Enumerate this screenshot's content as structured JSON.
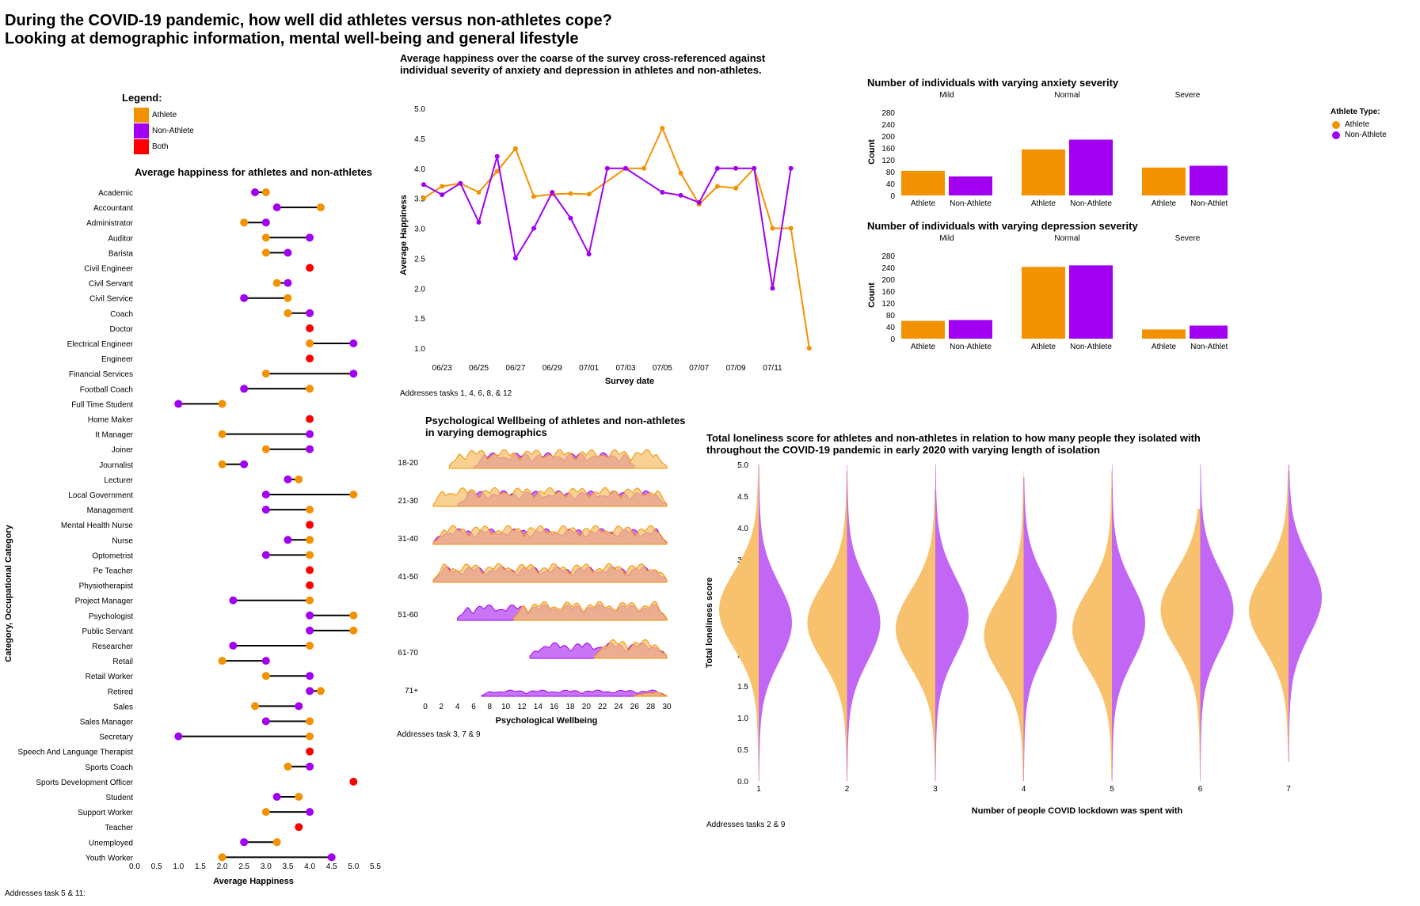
{
  "header": {
    "title_line1": "During the COVID-19 pandemic, how well did athletes versus non-athletes cope?",
    "title_line2": "Looking at demographic information, mental well-being and general lifestyle"
  },
  "colors": {
    "athlete": "#f39200",
    "non_athlete": "#a100f2",
    "both": "#ff0000",
    "athlete_fill": "#f7c16d",
    "non_athlete_fill": "#c266f5",
    "overlap_fill": "#e0827a"
  },
  "legend": {
    "title": "Legend:",
    "items": [
      {
        "label": "Athlete",
        "color": "#f39200"
      },
      {
        "label": "Non-Athlete",
        "color": "#a100f2"
      },
      {
        "label": "Both",
        "color": "#ff0000"
      }
    ]
  },
  "athlete_type_legend": {
    "title": "Athlete Type:",
    "items": [
      {
        "label": "Athlete",
        "color": "#f39200"
      },
      {
        "label": "Non-Athlete",
        "color": "#a100f2"
      }
    ]
  },
  "dumbbell": {
    "title": "Average happiness for athletes and non-athletes",
    "xlabel": "Average Happiness",
    "ylabel": "Category, Occupational Category",
    "note": "Addresses task 5 & 11:",
    "x_ticks": [
      "0.0",
      "0.5",
      "1.0",
      "1.5",
      "2.0",
      "2.5",
      "3.0",
      "3.5",
      "4.0",
      "4.5",
      "5.0",
      "5.5"
    ]
  },
  "line": {
    "title_line1": "Average happiness over the coarse of the survey cross-referenced against",
    "title_line2": "individual severity of anxiety and depression in athletes and non-athletes.",
    "xlabel": "Survey date",
    "ylabel": "Average Happiness",
    "note": "Addresses tasks 1, 4, 6, 8, & 12",
    "y_ticks": [
      "1.0",
      "1.5",
      "2.0",
      "2.5",
      "3.0",
      "3.5",
      "4.0",
      "4.5",
      "5.0"
    ],
    "x_ticks": [
      "06/23",
      "06/25",
      "06/27",
      "06/29",
      "07/01",
      "07/03",
      "07/05",
      "07/07",
      "07/09",
      "07/11"
    ]
  },
  "anxiety": {
    "title": "Number of individuals with varying anxiety severity",
    "facets": [
      "Mild",
      "Normal",
      "Severe"
    ],
    "ylabel": "Count",
    "y_ticks": [
      "0",
      "40",
      "80",
      "120",
      "160",
      "200",
      "240",
      "280"
    ],
    "bar_labels": [
      "Athlete",
      "Non-Athlete"
    ]
  },
  "depression": {
    "title": "Number of individuals with varying depression severity",
    "facets": [
      "Mild",
      "Normal",
      "Severe"
    ],
    "ylabel": "Count",
    "y_ticks": [
      "0",
      "40",
      "80",
      "120",
      "160",
      "200",
      "240",
      "280"
    ],
    "bar_labels": [
      "Athlete",
      "Non-Athlete"
    ]
  },
  "ridge": {
    "title_line1": "Psychological Wellbeing of athletes and non-athletes",
    "title_line2": "in varying demographics",
    "xlabel": "Psychological Wellbeing",
    "note": "Addresses task 3, 7 & 9",
    "groups": [
      "18-20",
      "21-30",
      "31-40",
      "41-50",
      "51-60",
      "61-70",
      "71+"
    ],
    "x_ticks": [
      "0",
      "2",
      "4",
      "6",
      "8",
      "10",
      "12",
      "14",
      "16",
      "18",
      "20",
      "22",
      "24",
      "26",
      "28",
      "30"
    ]
  },
  "violin": {
    "title_line1": "Total loneliness score for athletes and non-athletes in relation to how many people they isolated with",
    "title_line2": "throughout the COVID-19 pandemic in early 2020 with varying length of isolation",
    "xlabel": "Number of people COVID lockdown was spent with",
    "ylabel": "Total loneliness score",
    "note": "Addresses tasks 2 & 9",
    "y_ticks": [
      "0.0",
      "0.5",
      "1.0",
      "1.5",
      "2.0",
      "2.5",
      "3.0",
      "3.5",
      "4.0",
      "4.5",
      "5.0"
    ],
    "x_ticks": [
      "1",
      "2",
      "3",
      "4",
      "5",
      "6",
      "7"
    ]
  },
  "chart_data": [
    {
      "type": "dumbbell",
      "title": "Average happiness for athletes and non-athletes",
      "xlabel": "Average Happiness",
      "ylabel": "Category, Occupational Category",
      "xlim": [
        0,
        5.5
      ],
      "categories": [
        "Academic",
        "Accountant",
        "Administrator",
        "Auditor",
        "Barista",
        "Civil Engineer",
        "Civil Servant",
        "Civil Service",
        "Coach",
        "Doctor",
        "Electrical Engineer",
        "Engineer",
        "Financial Services",
        "Football Coach",
        "Full Time Student",
        "Home Maker",
        "It Manager",
        "Joiner",
        "Journalist",
        "Lecturer",
        "Local Government",
        "Management",
        "Mental Health Nurse",
        "Nurse",
        "Optometrist",
        "Pe Teacher",
        "Physiotherapist",
        "Project Manager",
        "Psychologist",
        "Public Servant",
        "Researcher",
        "Retail",
        "Retail Worker",
        "Retired",
        "Sales",
        "Sales Manager",
        "Secretary",
        "Speech And Language Therapist",
        "Sports Coach",
        "Sports Development Officer",
        "Student",
        "Support Worker",
        "Teacher",
        "Unemployed",
        "Youth Worker"
      ],
      "athlete": [
        3.0,
        4.25,
        2.5,
        3.0,
        3.0,
        null,
        3.25,
        3.5,
        3.5,
        null,
        4.0,
        null,
        3.0,
        4.0,
        2.0,
        null,
        2.0,
        3.0,
        2.0,
        3.75,
        5.0,
        4.0,
        null,
        4.0,
        4.0,
        null,
        null,
        4.0,
        5.0,
        5.0,
        4.0,
        2.0,
        3.0,
        4.25,
        2.75,
        4.0,
        4.0,
        null,
        3.5,
        null,
        3.75,
        3.0,
        null,
        3.25,
        2.0
      ],
      "non_athlete": [
        2.75,
        3.25,
        3.0,
        4.0,
        3.5,
        null,
        3.5,
        2.5,
        4.0,
        null,
        5.0,
        null,
        5.0,
        2.5,
        1.0,
        null,
        4.0,
        4.0,
        2.5,
        3.5,
        3.0,
        3.0,
        null,
        3.5,
        3.0,
        null,
        null,
        2.25,
        4.0,
        4.0,
        2.25,
        3.0,
        4.0,
        4.0,
        3.75,
        3.0,
        1.0,
        null,
        4.0,
        null,
        3.25,
        4.0,
        null,
        2.5,
        4.5
      ],
      "both": [
        null,
        null,
        null,
        null,
        null,
        4.0,
        null,
        null,
        null,
        4.0,
        null,
        4.0,
        null,
        null,
        null,
        4.0,
        null,
        null,
        null,
        null,
        null,
        null,
        4.0,
        null,
        null,
        4.0,
        4.0,
        null,
        null,
        null,
        null,
        null,
        null,
        null,
        null,
        null,
        null,
        4.0,
        null,
        5.0,
        null,
        null,
        3.75,
        null,
        null
      ]
    },
    {
      "type": "line",
      "title": "Average happiness over the coarse of the survey cross-referenced against individual severity of anxiety and depression in athletes and non-athletes.",
      "xlabel": "Survey date",
      "ylabel": "Average Happiness",
      "ylim": [
        1.0,
        5.0
      ],
      "x": [
        "06/22",
        "06/23",
        "06/24",
        "06/25",
        "06/26",
        "06/27",
        "06/28",
        "06/29",
        "06/30",
        "07/01",
        "07/02",
        "07/03",
        "07/04",
        "07/05",
        "07/06",
        "07/07",
        "07/08",
        "07/09",
        "07/10",
        "07/11",
        "07/12",
        "07/13",
        "07/14"
      ],
      "series": [
        {
          "name": "Athlete",
          "values": [
            3.5,
            3.7,
            3.75,
            3.6,
            3.95,
            4.33,
            3.53,
            3.57,
            3.58,
            3.57,
            null,
            4.0,
            4.0,
            4.67,
            3.92,
            3.4,
            3.7,
            3.67,
            4.0,
            3.0,
            3.0,
            1.0,
            null
          ]
        },
        {
          "name": "Non-Athlete",
          "values": [
            3.73,
            3.56,
            3.75,
            3.1,
            4.2,
            2.5,
            3.0,
            3.6,
            3.17,
            2.57,
            4.0,
            4.0,
            null,
            3.6,
            3.55,
            3.43,
            4.0,
            4.0,
            4.0,
            2.0,
            4.0,
            null,
            null
          ]
        }
      ]
    },
    {
      "type": "bar",
      "title": "Number of individuals with varying anxiety severity",
      "ylabel": "Count",
      "ylim": [
        0,
        280
      ],
      "facets": [
        "Mild",
        "Normal",
        "Severe"
      ],
      "categories": [
        "Athlete",
        "Non-Athlete"
      ],
      "values": [
        [
          83,
          64
        ],
        [
          155,
          188
        ],
        [
          94,
          100
        ]
      ]
    },
    {
      "type": "bar",
      "title": "Number of individuals with varying depression severity",
      "ylabel": "Count",
      "ylim": [
        0,
        280
      ],
      "facets": [
        "Mild",
        "Normal",
        "Severe"
      ],
      "categories": [
        "Athlete",
        "Non-Athlete"
      ],
      "values": [
        [
          60,
          63
        ],
        [
          242,
          247
        ],
        [
          31,
          44
        ]
      ]
    },
    {
      "type": "area",
      "title": "Psychological Wellbeing of athletes and non-athletes in varying demographics",
      "xlabel": "Psychological Wellbeing",
      "xlim": [
        0,
        30
      ],
      "groups": [
        "18-20",
        "21-30",
        "31-40",
        "41-50",
        "51-60",
        "61-70",
        "71+"
      ],
      "ranges": {
        "athlete": [
          [
            3,
            30
          ],
          [
            1,
            30
          ],
          [
            1,
            30
          ],
          [
            1,
            30
          ],
          [
            11,
            30
          ],
          [
            21,
            30
          ],
          [
            26,
            30
          ]
        ],
        "non_athlete": [
          [
            6,
            26
          ],
          [
            4,
            30
          ],
          [
            1,
            30
          ],
          [
            1,
            30
          ],
          [
            4,
            30
          ],
          [
            13,
            30
          ],
          [
            7,
            30
          ]
        ]
      }
    },
    {
      "type": "violin",
      "title": "Total loneliness score for athletes and non-athletes in relation to how many people they isolated with throughout the COVID-19 pandemic in early 2020 with varying length of isolation",
      "xlabel": "Number of people COVID lockdown was spent with",
      "ylabel": "Total loneliness score",
      "ylim": [
        0,
        5
      ],
      "categories": [
        "1",
        "2",
        "3",
        "4",
        "5",
        "6",
        "7"
      ],
      "athlete_range": [
        [
          0,
          5
        ],
        [
          0,
          4.9
        ],
        [
          0,
          4.6
        ],
        [
          0,
          4.9
        ],
        [
          0,
          4.9
        ],
        [
          0,
          4.3
        ],
        [
          0.3,
          4.9
        ]
      ],
      "non_athlete_range": [
        [
          0,
          5
        ],
        [
          0,
          5
        ],
        [
          0,
          5
        ],
        [
          0,
          4.8
        ],
        [
          0,
          5
        ],
        [
          0,
          5
        ],
        [
          0.3,
          5
        ]
      ],
      "athlete_peak": [
        2.7,
        2.5,
        2.4,
        2.3,
        2.4,
        2.7,
        2.7
      ],
      "non_athlete_peak": [
        2.5,
        2.5,
        2.6,
        2.6,
        2.5,
        2.7,
        2.9
      ]
    }
  ]
}
